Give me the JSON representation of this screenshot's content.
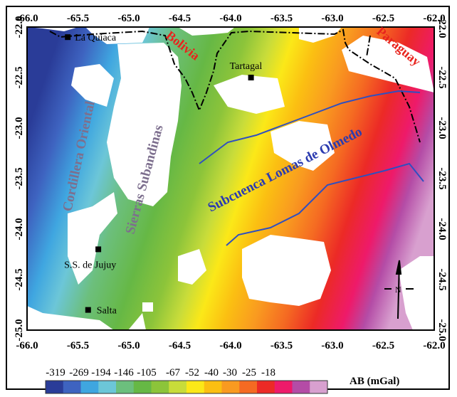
{
  "map": {
    "x_ticks": [
      "-66.0",
      "-65.5",
      "-65.0",
      "-64.5",
      "-64.0",
      "-63.5",
      "-63.0",
      "-62.5",
      "-62.0"
    ],
    "y_ticks": [
      "-22.0",
      "-22.5",
      "-23.0",
      "-23.5",
      "-24.0",
      "-24.5",
      "-25.0"
    ],
    "lon_range": [
      -66.0,
      -62.0
    ],
    "lat_range": [
      -25.0,
      -22.0
    ],
    "cities": [
      {
        "name": "La Quiaca",
        "lon": -65.6,
        "lat": -22.1
      },
      {
        "name": "Tartagal",
        "lon": -63.8,
        "lat": -22.5
      },
      {
        "name": "S.S. de Jujuy",
        "lon": -65.3,
        "lat": -24.2
      },
      {
        "name": "Salta",
        "lon": -65.4,
        "lat": -24.8
      }
    ],
    "countries": {
      "bolivia": "Bolivia",
      "paraguay": "Paraguay"
    },
    "regions": {
      "cordillera": "Cordillera Oriental",
      "sierras": "Sierras Subandinas",
      "subcuenca": "Subcuenca Lomas de Olmedo"
    },
    "north_label": "N",
    "colors": {
      "country_label": "#e8231d",
      "region_label": "#7d6f8e",
      "subcuenca_label": "#2b3bb0",
      "fault_line": "#2f4fc0"
    }
  },
  "legend": {
    "title": "AB (mGal)",
    "values": [
      "-319",
      "-269",
      "-194",
      "-146",
      "-105",
      "-67",
      "-52",
      "-40",
      "-30",
      "-25",
      "-18"
    ],
    "colors": [
      "#2a3c98",
      "#3e63c0",
      "#3fa6e0",
      "#6cc6d8",
      "#6cbf7d",
      "#66b845",
      "#8cc43a",
      "#c8dc3a",
      "#fbe818",
      "#fbbf12",
      "#f99a20",
      "#f56a22",
      "#ec2a26",
      "#ee1a6a",
      "#b44ca6",
      "#d8a0cf"
    ]
  }
}
